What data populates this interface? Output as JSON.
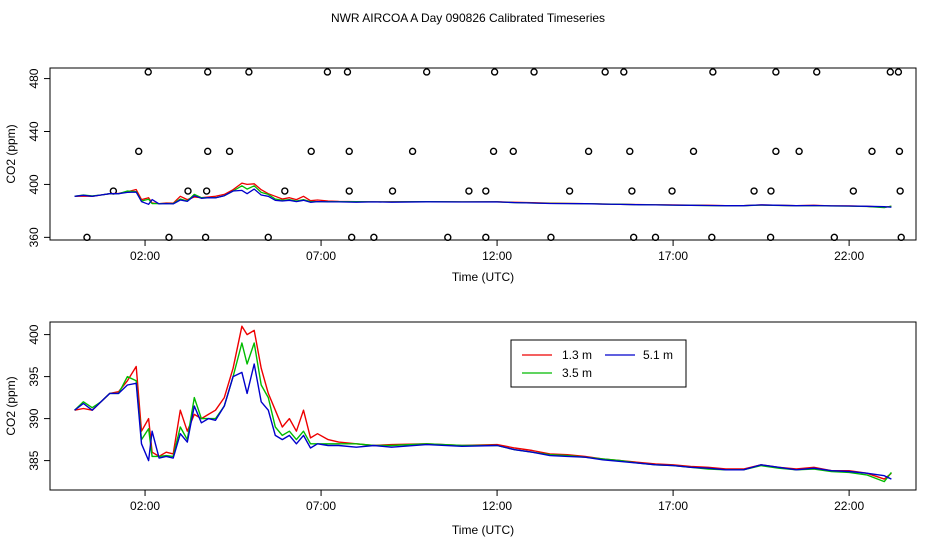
{
  "title": "NWR AIRCOA A  Day 090826  Calibrated Timeseries",
  "chart_data": [
    {
      "type": "scatter",
      "xlabel": "Time (UTC)",
      "ylabel": "CO2 (ppm)",
      "xlim": [
        -0.7,
        23.9
      ],
      "ylim": [
        358,
        488
      ],
      "xticks": [
        2,
        7,
        12,
        17,
        22
      ],
      "xtick_labels": [
        "02:00",
        "07:00",
        "12:00",
        "17:00",
        "22:00"
      ],
      "yticks": [
        360,
        400,
        440,
        480
      ],
      "ytick_labels": [
        "360",
        "400",
        "440",
        "480"
      ],
      "calibration_points": {
        "360": [
          0.35,
          2.68,
          3.72,
          5.5,
          7.87,
          8.5,
          10.6,
          11.68,
          13.53,
          15.88,
          16.5,
          18.1,
          19.77,
          21.58,
          23.48
        ],
        "395": [
          1.1,
          3.22,
          3.75,
          5.97,
          7.8,
          9.03,
          11.2,
          11.68,
          14.06,
          15.83,
          16.97,
          19.3,
          19.78,
          22.12,
          23.45
        ],
        "425": [
          1.82,
          3.78,
          4.4,
          6.72,
          7.8,
          9.6,
          11.9,
          12.46,
          14.6,
          15.77,
          17.58,
          19.92,
          20.58,
          22.65,
          23.43
        ],
        "485": [
          2.09,
          3.78,
          4.95,
          7.18,
          7.75,
          10.0,
          11.93,
          13.05,
          15.07,
          15.6,
          18.13,
          19.92,
          21.08,
          23.17,
          23.4
        ]
      },
      "series": [
        {
          "name": "1.3 m",
          "color": "#ee0000"
        },
        {
          "name": "3.5 m",
          "color": "#00bb00"
        },
        {
          "name": "5.1 m",
          "color": "#0000cc"
        }
      ]
    },
    {
      "type": "line",
      "xlabel": "Time (UTC)",
      "ylabel": "CO2 (ppm)",
      "xlim": [
        -0.7,
        23.9
      ],
      "ylim": [
        381.5,
        401.5
      ],
      "xticks": [
        2,
        7,
        12,
        17,
        22
      ],
      "xtick_labels": [
        "02:00",
        "07:00",
        "12:00",
        "17:00",
        "22:00"
      ],
      "yticks": [
        385,
        390,
        395,
        400
      ],
      "ytick_labels": [
        "385",
        "390",
        "395",
        "400"
      ],
      "legend_position": "top-center",
      "series": [
        {
          "name": "1.3 m",
          "color": "#ee0000",
          "x": [
            0,
            0.25,
            0.5,
            0.75,
            1,
            1.25,
            1.5,
            1.75,
            1.9,
            2.1,
            2.2,
            2.4,
            2.6,
            2.8,
            3,
            3.2,
            3.4,
            3.6,
            3.8,
            4,
            4.25,
            4.5,
            4.75,
            4.9,
            5.1,
            5.3,
            5.5,
            5.7,
            5.9,
            6.1,
            6.3,
            6.5,
            6.7,
            6.9,
            7.2,
            7.5,
            8,
            8.5,
            9,
            10,
            11,
            12,
            12.5,
            13,
            13.5,
            14,
            14.5,
            15,
            15.5,
            16,
            16.5,
            17,
            17.5,
            18,
            18.5,
            19,
            19.5,
            20,
            20.5,
            21,
            21.5,
            22,
            22.5,
            23,
            23.2
          ],
          "y": [
            391,
            391.2,
            391,
            392,
            393,
            393.2,
            394.5,
            396.2,
            388.5,
            390,
            386,
            385.5,
            386,
            385.8,
            391,
            388.5,
            390.5,
            390,
            390.5,
            391,
            392.5,
            396,
            401,
            400,
            400.5,
            396,
            393,
            391,
            389,
            390,
            388.5,
            391,
            387.7,
            388.2,
            387.5,
            387.2,
            387,
            386.8,
            386.9,
            387,
            386.8,
            386.9,
            386.5,
            386.2,
            385.8,
            385.7,
            385.5,
            385.2,
            385,
            384.8,
            384.6,
            384.5,
            384.3,
            384.2,
            384,
            384,
            384.5,
            384.2,
            384,
            384.2,
            383.8,
            383.8,
            383.5,
            382.8,
            383.5
          ]
        },
        {
          "name": "3.5 m",
          "color": "#00bb00",
          "x": [
            0,
            0.25,
            0.5,
            0.75,
            1,
            1.25,
            1.5,
            1.75,
            1.9,
            2.1,
            2.2,
            2.4,
            2.6,
            2.8,
            3,
            3.2,
            3.4,
            3.6,
            3.8,
            4,
            4.25,
            4.5,
            4.75,
            4.9,
            5.1,
            5.3,
            5.5,
            5.7,
            5.9,
            6.1,
            6.3,
            6.5,
            6.7,
            6.9,
            7.2,
            7.5,
            8,
            8.5,
            9,
            10,
            11,
            12,
            12.5,
            13,
            13.5,
            14,
            14.5,
            15,
            15.5,
            16,
            16.5,
            17,
            17.5,
            18,
            18.5,
            19,
            19.5,
            20,
            20.5,
            21,
            21.5,
            22,
            22.5,
            23,
            23.2
          ],
          "y": [
            391,
            392,
            391.3,
            392,
            393,
            393,
            395,
            394.5,
            387.5,
            388.8,
            385.5,
            385.5,
            385.6,
            385.5,
            389,
            387.5,
            392.5,
            390,
            390,
            390,
            391.5,
            395,
            399,
            396.5,
            399,
            394,
            392.5,
            389,
            388,
            388.5,
            387.5,
            388.5,
            387,
            387,
            387,
            387,
            387,
            386.8,
            386.8,
            387,
            386.8,
            386.8,
            386.3,
            386,
            385.7,
            385.6,
            385.4,
            385.2,
            385,
            384.7,
            384.5,
            384.4,
            384.2,
            384,
            383.9,
            383.9,
            384.4,
            384.1,
            383.9,
            384,
            383.7,
            383.6,
            383.3,
            382.5,
            383.6
          ]
        },
        {
          "name": "5.1 m",
          "color": "#0000cc",
          "x": [
            0,
            0.25,
            0.5,
            0.75,
            1,
            1.25,
            1.5,
            1.75,
            1.9,
            2.1,
            2.2,
            2.4,
            2.6,
            2.8,
            3,
            3.2,
            3.4,
            3.6,
            3.8,
            4,
            4.25,
            4.5,
            4.75,
            4.9,
            5.1,
            5.3,
            5.5,
            5.7,
            5.9,
            6.1,
            6.3,
            6.5,
            6.7,
            6.9,
            7.2,
            7.5,
            8,
            8.5,
            9,
            10,
            11,
            12,
            12.5,
            13,
            13.5,
            14,
            14.5,
            15,
            15.5,
            16,
            16.5,
            17,
            17.5,
            18,
            18.5,
            19,
            19.5,
            20,
            20.5,
            21,
            21.5,
            22,
            22.5,
            23,
            23.2
          ],
          "y": [
            391,
            391.8,
            391,
            392,
            393,
            393,
            394,
            394.2,
            387,
            385,
            388.5,
            385.3,
            385.5,
            385.3,
            388.2,
            387.2,
            391.5,
            389.5,
            390,
            389.8,
            391.5,
            395,
            395.5,
            393,
            396.5,
            392,
            391,
            388,
            387.5,
            388,
            387,
            388,
            386.5,
            387,
            386.8,
            386.8,
            386.6,
            386.8,
            386.6,
            386.9,
            386.7,
            386.8,
            386.3,
            386,
            385.6,
            385.5,
            385.4,
            385.1,
            384.9,
            384.7,
            384.5,
            384.4,
            384.2,
            384.1,
            383.9,
            383.9,
            384.5,
            384.2,
            383.9,
            384.1,
            383.8,
            383.7,
            383.5,
            383.2,
            382.8
          ]
        }
      ]
    }
  ]
}
